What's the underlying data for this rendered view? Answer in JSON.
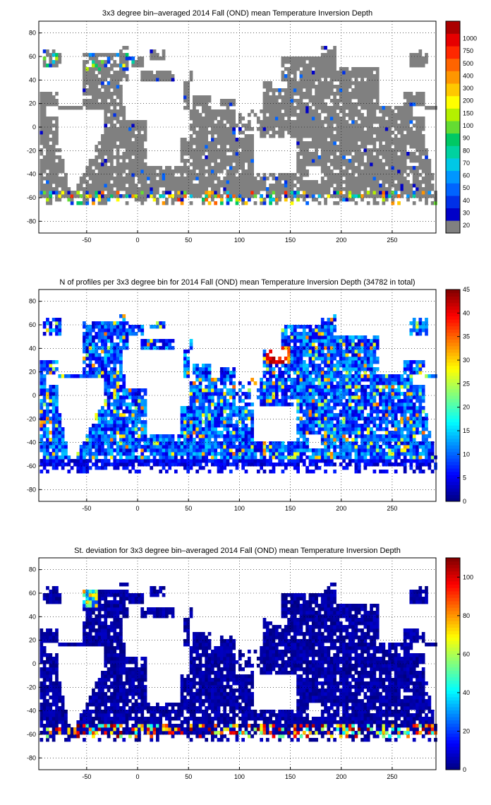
{
  "chart_data": [
    {
      "type": "heatmap",
      "title": "3x3 degree bin–averaged 2014 Fall (OND) mean Temperature Inversion Depth",
      "xlim": [
        -97,
        293
      ],
      "ylim": [
        -90,
        90
      ],
      "xticks": [
        -50,
        0,
        50,
        100,
        150,
        200,
        250
      ],
      "yticks": [
        80,
        60,
        40,
        20,
        0,
        -20,
        -40,
        -60,
        -80
      ],
      "grid": true,
      "colorbar": {
        "scale": "categorical",
        "labels": [
          "20",
          "30",
          "40",
          "50",
          "60",
          "70",
          "80",
          "90",
          "100",
          "150",
          "200",
          "300",
          "400",
          "500",
          "750",
          "1000"
        ],
        "colors": [
          "#808080",
          "#0000c8",
          "#0030e8",
          "#0064ff",
          "#0096ff",
          "#00c8e6",
          "#00d2a0",
          "#00c864",
          "#64dc32",
          "#b4f000",
          "#ffff00",
          "#ffc800",
          "#ff9600",
          "#ff6400",
          "#ff2800",
          "#e60000",
          "#aa0000"
        ],
        "min": 20,
        "max": 1000
      },
      "summary": "Most ocean bins fall in the lowest class (20 m, grey); deeper inversion depths (100-1000 m) concentrate along 60-65S and in the far North Atlantic."
    },
    {
      "type": "heatmap",
      "title": "N of profiles per 3x3 degree bin for 2014 Fall (OND) mean Temperature Inversion Depth  (34782 in total)",
      "xlim": [
        -97,
        293
      ],
      "ylim": [
        -90,
        90
      ],
      "xticks": [
        -50,
        0,
        50,
        100,
        150,
        200,
        250
      ],
      "yticks": [
        80,
        60,
        40,
        20,
        0,
        -20,
        -40,
        -60,
        -80
      ],
      "grid": true,
      "total_profiles": 34782,
      "colorbar": {
        "scale": "jet",
        "ticks": [
          0,
          5,
          10,
          15,
          20,
          25,
          30,
          35,
          40,
          45
        ],
        "min": 0,
        "max": 45
      },
      "summary": "Profile counts are mostly 3-15 per bin; hot spots (35-45) near Japan (~140E,35N), the Mediterranean, and the northern Indian Ocean."
    },
    {
      "type": "heatmap",
      "title": "St. deviation for 3x3 degree bin–averaged 2014 Fall (OND) mean Temperature Inversion Depth",
      "xlim": [
        -97,
        293
      ],
      "ylim": [
        -90,
        90
      ],
      "xticks": [
        -50,
        0,
        50,
        100,
        150,
        200,
        250
      ],
      "yticks": [
        80,
        60,
        40,
        20,
        0,
        -20,
        -40,
        -60,
        -80
      ],
      "grid": true,
      "colorbar": {
        "scale": "jet",
        "ticks": [
          0,
          20,
          40,
          60,
          80,
          100
        ],
        "min": 0,
        "max": 110
      },
      "summary": "Standard deviation near 0-10 over most of the ocean; large values (80-110) along the Southern Ocean band 55-65S and in the Labrador/North Atlantic region."
    }
  ]
}
